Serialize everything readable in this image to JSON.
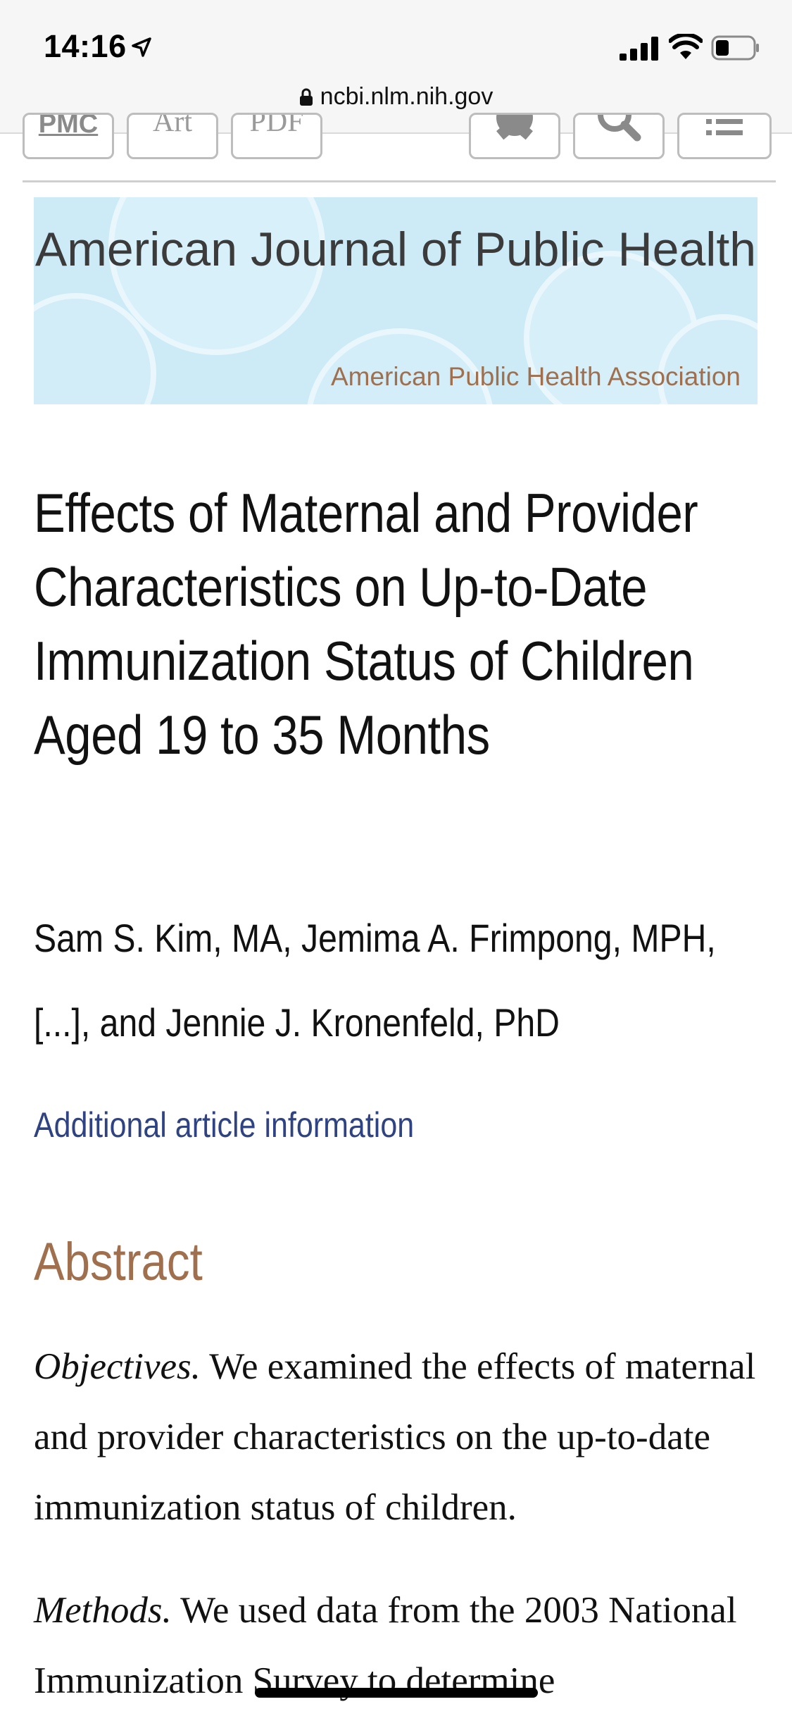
{
  "status_bar": {
    "time": "14:16",
    "url": "ncbi.nlm.nih.gov"
  },
  "toolbar": {
    "buttons": [
      "PMC",
      "Art",
      "PDF"
    ],
    "icons": [
      "gear-icon",
      "search-icon",
      "menu-icon"
    ]
  },
  "banner": {
    "journal_title": "American Journal of Public Health",
    "publisher": "American Public Health Association"
  },
  "article": {
    "title": "Effects of Maternal and Provider Characteristics on Up-to-Date Immunization Status of Children Aged 19 to 35 Months",
    "authors": "Sam S. Kim, MA, Jemima A. Frimpong, MPH, [...], and Jennie J. Kronenfeld, PhD",
    "info_link": "Additional article information"
  },
  "abstract": {
    "heading": "Abstract",
    "objectives_label": "Objectives.",
    "objectives_text": " We examined the effects of maternal and provider characteristics on the up-to-date immunization status of children.",
    "methods_label": "Methods.",
    "methods_text": " We used data from the 2003 National Immunization Survey to determine"
  },
  "colors": {
    "banner_bg": "#cdeaf7",
    "accent_brown": "#a0704e",
    "link_blue": "#2f4383"
  }
}
